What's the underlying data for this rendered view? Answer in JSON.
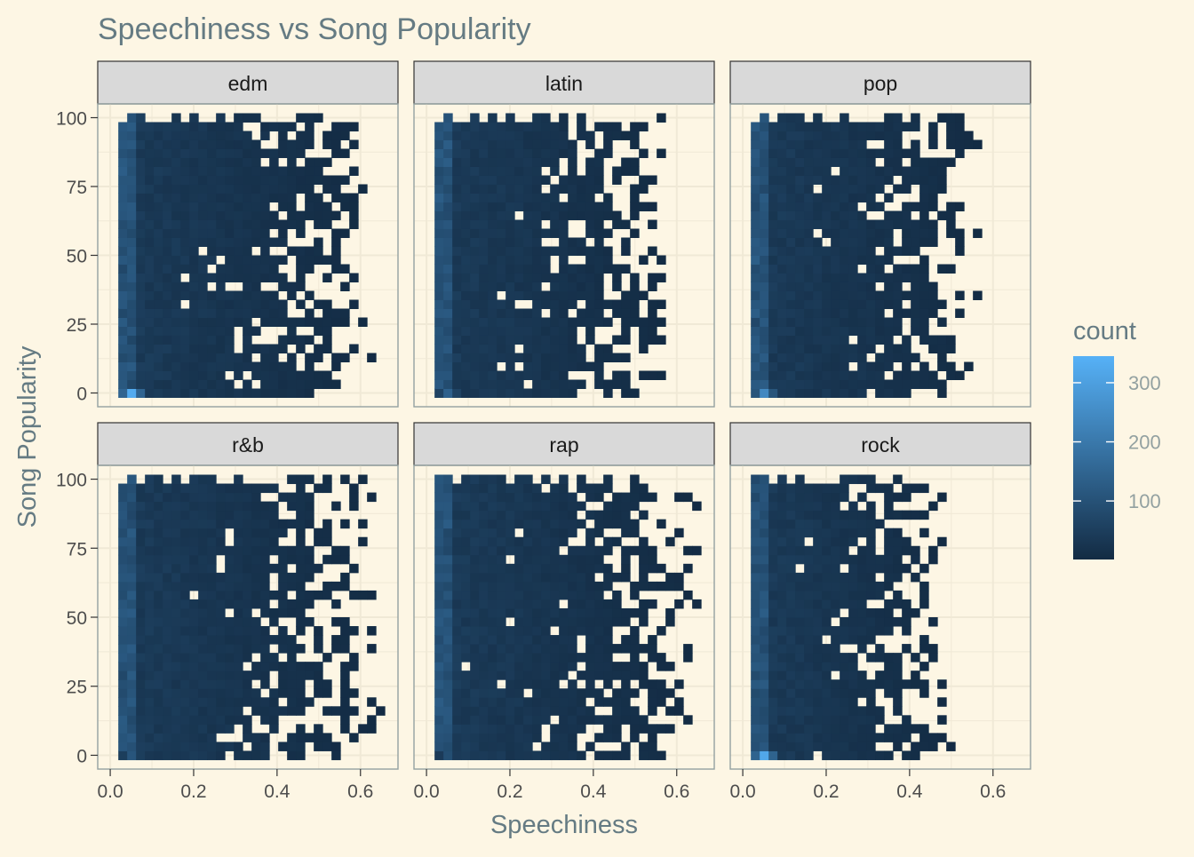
{
  "chart_data": {
    "type": "heatmap",
    "title": "Speechiness vs Song Popularity",
    "xlabel": "Speechiness",
    "ylabel": "Song Popularity",
    "xlim": [
      -0.03,
      0.69
    ],
    "ylim": [
      -5,
      105
    ],
    "x_ticks": [
      0.0,
      0.2,
      0.4,
      0.6
    ],
    "x_tick_labels": [
      "0.0",
      "0.2",
      "0.4",
      "0.6"
    ],
    "y_ticks": [
      0,
      25,
      50,
      75,
      100
    ],
    "y_tick_labels": [
      "0",
      "25",
      "50",
      "75",
      "100"
    ],
    "bin_width_x": 0.0213,
    "bin_width_y": 3.226,
    "facets": [
      "edm",
      "latin",
      "pop",
      "r&b",
      "rap",
      "rock"
    ],
    "facet_extents": [
      {
        "facet": "edm",
        "speech_max": 0.63,
        "bottom_speech_max": 0.52,
        "notable_outlier_max_count": 330
      },
      {
        "facet": "latin",
        "speech_max": 0.58,
        "bottom_speech_max": 0.52,
        "notable_outlier_max_count": 140
      },
      {
        "facet": "pop",
        "speech_max": 0.58,
        "bottom_speech_max": 0.58,
        "notable_outlier_max_count": 240
      },
      {
        "facet": "r&b",
        "speech_max": 0.65,
        "bottom_speech_max": 0.58,
        "notable_outlier_max_count": 110
      },
      {
        "facet": "rap",
        "speech_max": 0.65,
        "bottom_speech_max": 0.63,
        "notable_outlier_max_count": 90
      },
      {
        "facet": "rock",
        "speech_max": 0.5,
        "bottom_speech_max": 0.5,
        "notable_outlier_max_count": 320
      }
    ],
    "legend": {
      "title": "count",
      "position": "right",
      "min": 1,
      "max": 345,
      "ticks": [
        100,
        200,
        300
      ],
      "tick_labels": [
        "100",
        "200",
        "300"
      ],
      "low_color": "#132B43",
      "high_color": "#56B1F7"
    },
    "grid": true,
    "colors": {
      "background": "#FDF6E4",
      "panel_border": "#93A1A1",
      "strip_fill": "#D9D9D9",
      "strip_border": "#333333",
      "title_text": "#657B83",
      "grid": "#F0E9D6"
    }
  }
}
